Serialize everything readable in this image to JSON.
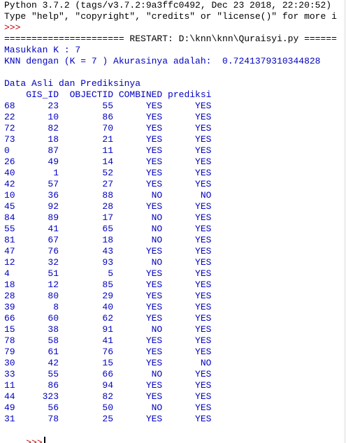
{
  "console": {
    "banner_1": "Python 3.7.2 (tags/v3.7.2:9a3ffc0492, Dec 23 2018, 22:20:52)",
    "banner_2": "Type \"help\", \"copyright\", \"credits\" or \"license()\" for more i",
    "prompt": ">>>",
    "restart": "====================== RESTART: D:\\knn\\knn\\Quraisyi.py ======",
    "input_k": "Masukkan K : 7",
    "accuracy": "KNN dengan (K = 7 ) Akurasinya adalah:  0.7241379310344828",
    "blank": "",
    "table_title": "Data Asli dan Prediksinya",
    "table_header": "    GIS_ID  OBJECTID COMBINED prediksi",
    "rows": [
      {
        "idx": "68",
        "gis_id": "23",
        "objectid": "55",
        "combined": "YES",
        "prediksi": "YES"
      },
      {
        "idx": "22",
        "gis_id": "10",
        "objectid": "86",
        "combined": "YES",
        "prediksi": "YES"
      },
      {
        "idx": "72",
        "gis_id": "82",
        "objectid": "70",
        "combined": "YES",
        "prediksi": "YES"
      },
      {
        "idx": "73",
        "gis_id": "18",
        "objectid": "21",
        "combined": "YES",
        "prediksi": "YES"
      },
      {
        "idx": "0",
        "gis_id": "87",
        "objectid": "11",
        "combined": "YES",
        "prediksi": "YES"
      },
      {
        "idx": "26",
        "gis_id": "49",
        "objectid": "14",
        "combined": "YES",
        "prediksi": "YES"
      },
      {
        "idx": "40",
        "gis_id": "1",
        "objectid": "52",
        "combined": "YES",
        "prediksi": "YES"
      },
      {
        "idx": "42",
        "gis_id": "57",
        "objectid": "27",
        "combined": "YES",
        "prediksi": "YES"
      },
      {
        "idx": "10",
        "gis_id": "36",
        "objectid": "88",
        "combined": "NO",
        "prediksi": "NO"
      },
      {
        "idx": "45",
        "gis_id": "92",
        "objectid": "28",
        "combined": "YES",
        "prediksi": "YES"
      },
      {
        "idx": "84",
        "gis_id": "89",
        "objectid": "17",
        "combined": "NO",
        "prediksi": "YES"
      },
      {
        "idx": "55",
        "gis_id": "41",
        "objectid": "65",
        "combined": "NO",
        "prediksi": "YES"
      },
      {
        "idx": "81",
        "gis_id": "67",
        "objectid": "18",
        "combined": "NO",
        "prediksi": "YES"
      },
      {
        "idx": "47",
        "gis_id": "76",
        "objectid": "43",
        "combined": "YES",
        "prediksi": "YES"
      },
      {
        "idx": "12",
        "gis_id": "32",
        "objectid": "93",
        "combined": "NO",
        "prediksi": "YES"
      },
      {
        "idx": "4",
        "gis_id": "51",
        "objectid": "5",
        "combined": "YES",
        "prediksi": "YES"
      },
      {
        "idx": "18",
        "gis_id": "12",
        "objectid": "85",
        "combined": "YES",
        "prediksi": "YES"
      },
      {
        "idx": "28",
        "gis_id": "80",
        "objectid": "29",
        "combined": "YES",
        "prediksi": "YES"
      },
      {
        "idx": "39",
        "gis_id": "8",
        "objectid": "40",
        "combined": "YES",
        "prediksi": "YES"
      },
      {
        "idx": "66",
        "gis_id": "60",
        "objectid": "62",
        "combined": "YES",
        "prediksi": "YES"
      },
      {
        "idx": "15",
        "gis_id": "38",
        "objectid": "91",
        "combined": "NO",
        "prediksi": "YES"
      },
      {
        "idx": "78",
        "gis_id": "58",
        "objectid": "41",
        "combined": "YES",
        "prediksi": "YES"
      },
      {
        "idx": "79",
        "gis_id": "61",
        "objectid": "76",
        "combined": "YES",
        "prediksi": "YES"
      },
      {
        "idx": "30",
        "gis_id": "42",
        "objectid": "15",
        "combined": "YES",
        "prediksi": "NO"
      },
      {
        "idx": "33",
        "gis_id": "55",
        "objectid": "66",
        "combined": "NO",
        "prediksi": "YES"
      },
      {
        "idx": "11",
        "gis_id": "86",
        "objectid": "94",
        "combined": "YES",
        "prediksi": "YES"
      },
      {
        "idx": "44",
        "gis_id": "323",
        "objectid": "82",
        "combined": "YES",
        "prediksi": "YES"
      },
      {
        "idx": "49",
        "gis_id": "56",
        "objectid": "50",
        "combined": "NO",
        "prediksi": "YES"
      },
      {
        "idx": "31",
        "gis_id": "78",
        "objectid": "25",
        "combined": "YES",
        "prediksi": "YES"
      }
    ]
  }
}
